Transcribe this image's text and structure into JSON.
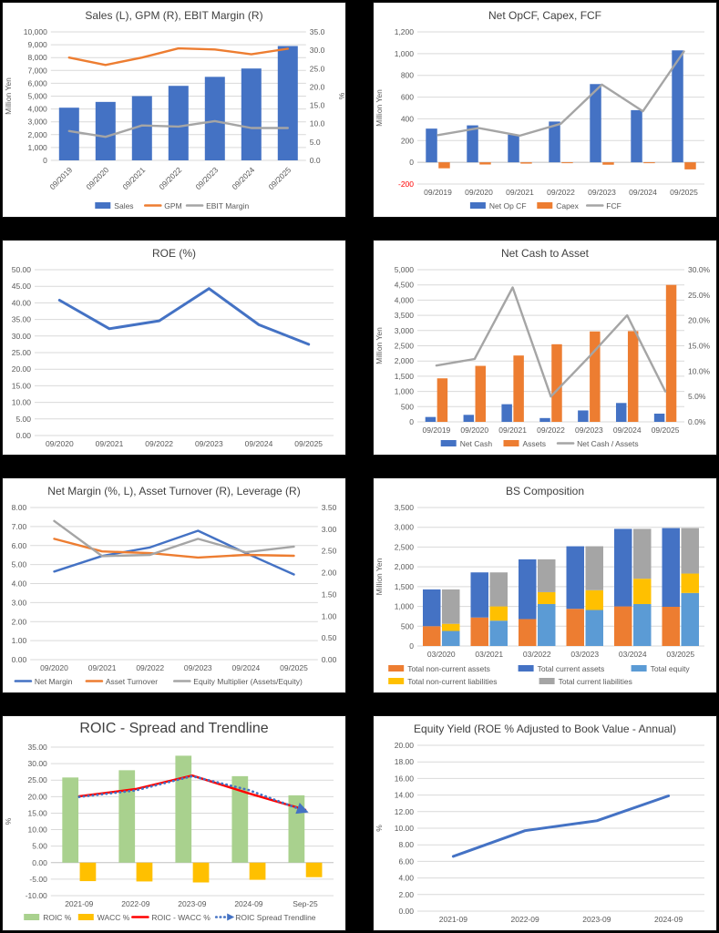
{
  "page": {
    "background": "#000000",
    "panel_background": "#ffffff",
    "grid_line_color": "#d9d9d9",
    "zero_line_color": "#c0c0c0",
    "tick_color": "#595959",
    "title_color": "#404040"
  },
  "chart_data": [
    {
      "type": "combo-bar-line",
      "title": "Sales (L), GPM (R), EBIT Margin (R)",
      "categories": [
        "09/2019",
        "09/2020",
        "09/2021",
        "09/2022",
        "09/2023",
        "09/2024",
        "09/2025"
      ],
      "rotate_x_labels": true,
      "legend": true,
      "axes": {
        "left": {
          "min": 0,
          "max": 10000,
          "step": 1000,
          "decimals": 0,
          "comma": true,
          "label": "Million Yen"
        },
        "right": {
          "min": 0,
          "max": 35,
          "step": 5,
          "decimals": 1,
          "label": "%"
        }
      },
      "series": [
        {
          "name": "Sales",
          "kind": "bar",
          "axis": "left",
          "color": "#4472C4",
          "values": [
            4100,
            4550,
            5000,
            5800,
            6500,
            7150,
            8900
          ]
        },
        {
          "name": "GPM",
          "kind": "line",
          "axis": "right",
          "color": "#ED7D31",
          "values": [
            28.0,
            26.0,
            28.0,
            30.5,
            30.2,
            28.9,
            30.4
          ]
        },
        {
          "name": "EBIT Margin",
          "kind": "line",
          "axis": "right",
          "color": "#A5A5A5",
          "values": [
            8.0,
            6.4,
            9.5,
            9.2,
            10.7,
            8.8,
            8.8
          ]
        }
      ]
    },
    {
      "type": "combo-bar-line",
      "title": "Net OpCF, Capex, FCF",
      "categories": [
        "09/2019",
        "09/2020",
        "09/2021",
        "09/2022",
        "09/2023",
        "09/2024",
        "09/2025"
      ],
      "rotate_x_labels": false,
      "legend": true,
      "axes": {
        "left": {
          "min": -200,
          "max": 1200,
          "step": 200,
          "decimals": 0,
          "comma": true,
          "label": "Million Yen",
          "negative_tick_color": "#FF0000"
        }
      },
      "series": [
        {
          "name": "Net Op CF",
          "kind": "bar",
          "axis": "left",
          "color": "#4472C4",
          "values": [
            310,
            340,
            255,
            375,
            720,
            480,
            1030
          ]
        },
        {
          "name": "Capex",
          "kind": "bar",
          "axis": "left",
          "color": "#ED7D31",
          "values": [
            -55,
            -20,
            -12,
            -8,
            -22,
            -8,
            -65
          ]
        },
        {
          "name": "FCF",
          "kind": "line",
          "axis": "left",
          "color": "#A5A5A5",
          "values": [
            250,
            315,
            245,
            355,
            715,
            470,
            1020
          ]
        }
      ]
    },
    {
      "type": "line",
      "title": "ROE (%)",
      "categories": [
        "09/2020",
        "09/2021",
        "09/2022",
        "09/2023",
        "09/2024",
        "09/2025"
      ],
      "rotate_x_labels": false,
      "legend": false,
      "axes": {
        "left": {
          "min": 0,
          "max": 50,
          "step": 5,
          "decimals": 2,
          "comma": false
        }
      },
      "series": [
        {
          "name": "ROE",
          "kind": "line",
          "axis": "left",
          "color": "#4472C4",
          "thick": true,
          "values": [
            40.8,
            32.2,
            34.6,
            44.3,
            33.4,
            27.5
          ]
        }
      ]
    },
    {
      "type": "combo-bar-line",
      "title": "Net Cash to Asset",
      "categories": [
        "09/2019",
        "09/2020",
        "09/2021",
        "09/2022",
        "09/2023",
        "09/2024",
        "09/2025"
      ],
      "rotate_x_labels": false,
      "legend": true,
      "axes": {
        "left": {
          "min": 0,
          "max": 5000,
          "step": 500,
          "decimals": 0,
          "comma": true,
          "label": "Million Yen"
        },
        "right": {
          "min": 0,
          "max": 30,
          "step": 5,
          "decimals": 1,
          "suffix": "%"
        }
      },
      "series": [
        {
          "name": "Net Cash",
          "kind": "bar",
          "axis": "left",
          "color": "#4472C4",
          "values": [
            160,
            230,
            580,
            125,
            375,
            620,
            270
          ]
        },
        {
          "name": "Assets",
          "kind": "bar",
          "axis": "left",
          "color": "#ED7D31",
          "values": [
            1430,
            1840,
            2180,
            2550,
            2970,
            2980,
            4500
          ]
        },
        {
          "name": "Net Cash / Assets",
          "kind": "line",
          "axis": "right",
          "color": "#A5A5A5",
          "values": [
            11.1,
            12.4,
            26.5,
            5.0,
            12.8,
            21.0,
            6.0
          ]
        }
      ]
    },
    {
      "type": "line",
      "title": "Net Margin (%, L), Asset Turnover (R), Leverage (R)",
      "categories": [
        "09/2020",
        "09/2021",
        "09/2022",
        "09/2023",
        "09/2024",
        "09/2025"
      ],
      "rotate_x_labels": false,
      "legend": true,
      "axes": {
        "left": {
          "min": 0,
          "max": 8,
          "step": 1,
          "decimals": 2,
          "comma": false
        },
        "right": {
          "min": 0,
          "max": 3.5,
          "step": 0.5,
          "decimals": 2
        }
      },
      "series": [
        {
          "name": "Net Margin",
          "kind": "line",
          "axis": "left",
          "color": "#4472C4",
          "values": [
            4.63,
            5.45,
            5.9,
            6.78,
            5.6,
            4.48
          ]
        },
        {
          "name": "Asset Turnover",
          "kind": "line",
          "axis": "right",
          "color": "#ED7D31",
          "values": [
            2.78,
            2.49,
            2.45,
            2.35,
            2.41,
            2.39
          ]
        },
        {
          "name": "Equity Multiplier (Assets/Equity)",
          "kind": "line",
          "axis": "right",
          "color": "#A5A5A5",
          "values": [
            3.19,
            2.38,
            2.41,
            2.78,
            2.47,
            2.6
          ]
        }
      ]
    },
    {
      "type": "stacked-bar",
      "title": "BS Composition",
      "categories": [
        "03/2020",
        "03/2021",
        "03/2022",
        "03/2023",
        "03/2024",
        "03/2025"
      ],
      "rotate_x_labels": false,
      "legend": true,
      "legend_rows": [
        [
          0,
          1,
          2
        ],
        [
          3,
          4
        ]
      ],
      "axes": {
        "left": {
          "min": 0,
          "max": 3500,
          "step": 500,
          "decimals": 0,
          "comma": true,
          "label": "Million Yen"
        }
      },
      "series": [
        {
          "name": "Total non-current assets",
          "kind": "bar",
          "stack": "assets",
          "axis": "left",
          "color": "#ED7D31",
          "values": [
            500,
            720,
            680,
            940,
            1000,
            990
          ]
        },
        {
          "name": "Total current assets",
          "kind": "bar",
          "stack": "assets",
          "axis": "left",
          "color": "#4472C4",
          "values": [
            930,
            1140,
            1510,
            1580,
            1960,
            1990
          ]
        },
        {
          "name": "Total equity",
          "kind": "bar",
          "stack": "liabilities",
          "axis": "left",
          "color": "#5B9BD5",
          "values": [
            380,
            640,
            1060,
            910,
            1060,
            1340
          ]
        },
        {
          "name": "Total non-current liabilities",
          "kind": "bar",
          "stack": "liabilities",
          "axis": "left",
          "color": "#FFC000",
          "values": [
            180,
            360,
            300,
            500,
            640,
            490
          ]
        },
        {
          "name": "Total current liabilities",
          "kind": "bar",
          "stack": "liabilities",
          "axis": "left",
          "color": "#A5A5A5",
          "values": [
            870,
            860,
            830,
            1110,
            1260,
            1150
          ]
        }
      ]
    },
    {
      "type": "combo-bar-line",
      "title": "ROIC - Spread and Trendline",
      "title_large": true,
      "categories": [
        "2021-09",
        "2022-09",
        "2023-09",
        "2024-09",
        "Sep-25"
      ],
      "rotate_x_labels": false,
      "legend": true,
      "axes": {
        "left": {
          "min": -10,
          "max": 35,
          "step": 5,
          "decimals": 2,
          "comma": false,
          "label": "%"
        }
      },
      "series": [
        {
          "name": "ROIC %",
          "kind": "bar",
          "axis": "left",
          "color": "#A9D18E",
          "values": [
            25.8,
            28.0,
            32.4,
            26.2,
            20.4
          ]
        },
        {
          "name": "WACC %",
          "kind": "bar",
          "axis": "left",
          "color": "#FFC000",
          "values": [
            -5.6,
            -5.7,
            -6.0,
            -5.2,
            -4.4
          ]
        },
        {
          "name": "ROIC - WACC %",
          "kind": "line",
          "axis": "left",
          "color": "#FF0000",
          "values": [
            20.1,
            22.3,
            26.4,
            21.0,
            16.0
          ]
        },
        {
          "name": "ROIC Spread Trendline",
          "kind": "line",
          "axis": "left",
          "color": "#4472C4",
          "dotted": true,
          "arrow": true,
          "values": [
            19.9,
            21.9,
            26.2,
            22.0,
            15.6
          ]
        }
      ]
    },
    {
      "type": "line",
      "title": "Equity Yield (ROE % Adjusted to Book Value - Annual)",
      "categories": [
        "2021-09",
        "2022-09",
        "2023-09",
        "2024-09"
      ],
      "rotate_x_labels": false,
      "legend": false,
      "axes": {
        "left": {
          "min": 0,
          "max": 20,
          "step": 2,
          "decimals": 2,
          "comma": false,
          "label": "%"
        }
      },
      "series": [
        {
          "name": "Equity Yield",
          "kind": "line",
          "axis": "left",
          "color": "#4472C4",
          "thick": true,
          "values": [
            6.6,
            9.7,
            10.9,
            13.9
          ]
        }
      ]
    }
  ]
}
